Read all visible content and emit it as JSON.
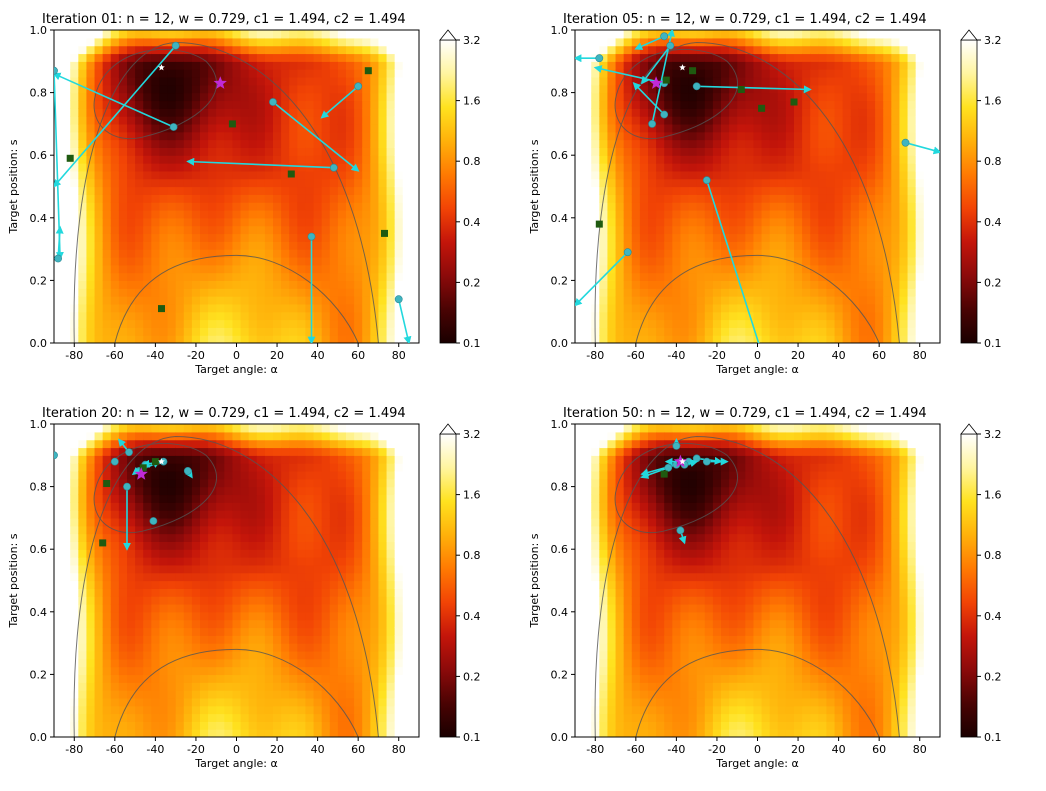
{
  "figure": {
    "colorbar": {
      "ticks": [
        "3.2",
        "1.6",
        "0.8",
        "0.4",
        "0.2",
        "0.1"
      ],
      "stops": [
        "#ffffff",
        "#fff5a0",
        "#ffe21f",
        "#ffb10a",
        "#ff7a02",
        "#f24405",
        "#c4150a",
        "#8c0a0a",
        "#4a0303",
        "#1a0000"
      ]
    },
    "colors": {
      "particle": "#3fb4c0",
      "velocity": "#22d8dd",
      "personal_best": "#1f5a10",
      "global_best": "#c12ad6",
      "optimum": "#ffffff",
      "contour": "#555555"
    }
  },
  "chart_data": [
    {
      "type": "contour",
      "title": "Iteration 01:   n = 12, w = 0.729, c1 = 1.494, c2 = 1.494",
      "xlabel": "Target angle: α",
      "ylabel": "Target position: s",
      "xlim": [
        -90,
        90
      ],
      "ylim": [
        0.0,
        1.0
      ],
      "xticks": [
        "-80",
        "-60",
        "-40",
        "-20",
        "0",
        "20",
        "40",
        "60",
        "80"
      ],
      "yticks": [
        "0.0",
        "0.2",
        "0.4",
        "0.6",
        "0.8",
        "1.0"
      ],
      "particles": [
        {
          "x": -30,
          "y": 0.95,
          "vx": -60,
          "vy": -0.45
        },
        {
          "x": -31,
          "y": 0.69,
          "vx": -59,
          "vy": 0.17
        },
        {
          "x": 18,
          "y": 0.77,
          "vx": 42,
          "vy": -0.22
        },
        {
          "x": 48,
          "y": 0.56,
          "vx": -72,
          "vy": 0.02
        },
        {
          "x": 60,
          "y": 0.82,
          "vx": -18,
          "vy": -0.1
        },
        {
          "x": 37,
          "y": 0.34,
          "vx": 0,
          "vy": -0.34
        },
        {
          "x": 80,
          "y": 0.14,
          "vx": 5,
          "vy": -0.14
        },
        {
          "x": -90,
          "y": 0.87,
          "vx": 3,
          "vy": -0.6
        },
        {
          "x": -88,
          "y": 0.27,
          "vx": 1,
          "vy": 0.1
        }
      ],
      "personal_best": [
        {
          "x": 65,
          "y": 0.87
        },
        {
          "x": -2,
          "y": 0.7
        },
        {
          "x": 27,
          "y": 0.54
        },
        {
          "x": 73,
          "y": 0.35
        },
        {
          "x": -37,
          "y": 0.11
        },
        {
          "x": -82,
          "y": 0.59
        }
      ],
      "global_best": {
        "x": -8,
        "y": 0.83
      },
      "optimum": {
        "x": -37,
        "y": 0.88
      }
    },
    {
      "type": "contour",
      "title": "Iteration 05:   n = 12, w = 0.729, c1 = 1.494, c2 = 1.494",
      "xlabel": "Target angle: α",
      "ylabel": "Target position: s",
      "xlim": [
        -90,
        90
      ],
      "ylim": [
        0.0,
        1.0
      ],
      "xticks": [
        "-80",
        "-60",
        "-40",
        "-20",
        "0",
        "20",
        "40",
        "60",
        "80"
      ],
      "yticks": [
        "0.0",
        "0.2",
        "0.4",
        "0.6",
        "0.8",
        "1.0"
      ],
      "particles": [
        {
          "x": -46,
          "y": 0.83,
          "vx": -34,
          "vy": 0.05
        },
        {
          "x": -52,
          "y": 0.7,
          "vx": 10,
          "vy": 0.3
        },
        {
          "x": -46,
          "y": 0.73,
          "vx": -15,
          "vy": 0.1
        },
        {
          "x": -30,
          "y": 0.82,
          "vx": 56,
          "vy": -0.01
        },
        {
          "x": -25,
          "y": 0.52,
          "vx": 27,
          "vy": -0.55
        },
        {
          "x": -64,
          "y": 0.29,
          "vx": -26,
          "vy": -0.17
        },
        {
          "x": -46,
          "y": 0.98,
          "vx": -14,
          "vy": -0.04
        },
        {
          "x": -43,
          "y": 0.95,
          "vx": -14,
          "vy": -0.12
        },
        {
          "x": 73,
          "y": 0.64,
          "vx": 17,
          "vy": -0.03
        },
        {
          "x": -78,
          "y": 0.91,
          "vx": -12,
          "vy": 0.0
        }
      ],
      "personal_best": [
        {
          "x": -32,
          "y": 0.87
        },
        {
          "x": -8,
          "y": 0.81
        },
        {
          "x": 2,
          "y": 0.75
        },
        {
          "x": 18,
          "y": 0.77
        },
        {
          "x": -78,
          "y": 0.38
        },
        {
          "x": -45,
          "y": 0.84
        }
      ],
      "global_best": {
        "x": -50,
        "y": 0.83
      },
      "optimum": {
        "x": -37,
        "y": 0.88
      }
    },
    {
      "type": "contour",
      "title": "Iteration 20:   n = 12, w = 0.729, c1 = 1.494, c2 = 1.494",
      "xlabel": "Target angle: α",
      "ylabel": "Target position: s",
      "xlim": [
        -90,
        90
      ],
      "ylim": [
        0.0,
        1.0
      ],
      "xticks": [
        "-80",
        "-60",
        "-40",
        "-20",
        "0",
        "20",
        "40",
        "60",
        "80"
      ],
      "yticks": [
        "0.0",
        "0.2",
        "0.4",
        "0.6",
        "0.8",
        "1.0"
      ],
      "particles": [
        {
          "x": -54,
          "y": 0.8,
          "vx": 0,
          "vy": -0.2
        },
        {
          "x": -53,
          "y": 0.91,
          "vx": -5,
          "vy": 0.04
        },
        {
          "x": -60,
          "y": 0.88,
          "vx": 0,
          "vy": 0
        },
        {
          "x": -48,
          "y": 0.85,
          "vx": 10,
          "vy": 0.03
        },
        {
          "x": -45,
          "y": 0.87,
          "vx": -6,
          "vy": -0.03
        },
        {
          "x": -24,
          "y": 0.85,
          "vx": 2,
          "vy": -0.02
        },
        {
          "x": -41,
          "y": 0.69,
          "vx": 0,
          "vy": 0
        },
        {
          "x": -36,
          "y": 0.88,
          "vx": -10,
          "vy": -0.01
        },
        {
          "x": -90,
          "y": 0.9,
          "vx": 0,
          "vy": 0
        }
      ],
      "personal_best": [
        {
          "x": -64,
          "y": 0.81
        },
        {
          "x": -66,
          "y": 0.62
        },
        {
          "x": -40,
          "y": 0.88
        },
        {
          "x": -46,
          "y": 0.86
        }
      ],
      "global_best": {
        "x": -47,
        "y": 0.84
      },
      "optimum": {
        "x": -37,
        "y": 0.88
      }
    },
    {
      "type": "contour",
      "title": "Iteration 50:   n = 12, w = 0.729, c1 = 1.494, c2 = 1.494",
      "xlabel": "Target angle: α",
      "ylabel": "Target position: s",
      "xlim": [
        -90,
        90
      ],
      "ylim": [
        0.0,
        1.0
      ],
      "xticks": [
        "-80",
        "-60",
        "-40",
        "-20",
        "0",
        "20",
        "40",
        "60",
        "80"
      ],
      "yticks": [
        "0.0",
        "0.2",
        "0.4",
        "0.6",
        "0.8",
        "1.0"
      ],
      "particles": [
        {
          "x": -40,
          "y": 0.93,
          "vx": 0,
          "vy": 0.02
        },
        {
          "x": -38,
          "y": 0.66,
          "vx": 2,
          "vy": -0.04
        },
        {
          "x": -40,
          "y": 0.87,
          "vx": -17,
          "vy": -0.03
        },
        {
          "x": -30,
          "y": 0.89,
          "vx": 12,
          "vy": -0.01
        },
        {
          "x": -25,
          "y": 0.88,
          "vx": 10,
          "vy": 0
        },
        {
          "x": -34,
          "y": 0.88,
          "vx": -11,
          "vy": 0
        },
        {
          "x": -44,
          "y": 0.86,
          "vx": -13,
          "vy": -0.03
        },
        {
          "x": -36,
          "y": 0.87,
          "vx": 6,
          "vy": 0.01
        }
      ],
      "personal_best": [
        {
          "x": -46,
          "y": 0.84
        },
        {
          "x": -38,
          "y": 0.88
        }
      ],
      "global_best": {
        "x": -38,
        "y": 0.88
      },
      "optimum": {
        "x": -37,
        "y": 0.88
      }
    }
  ]
}
